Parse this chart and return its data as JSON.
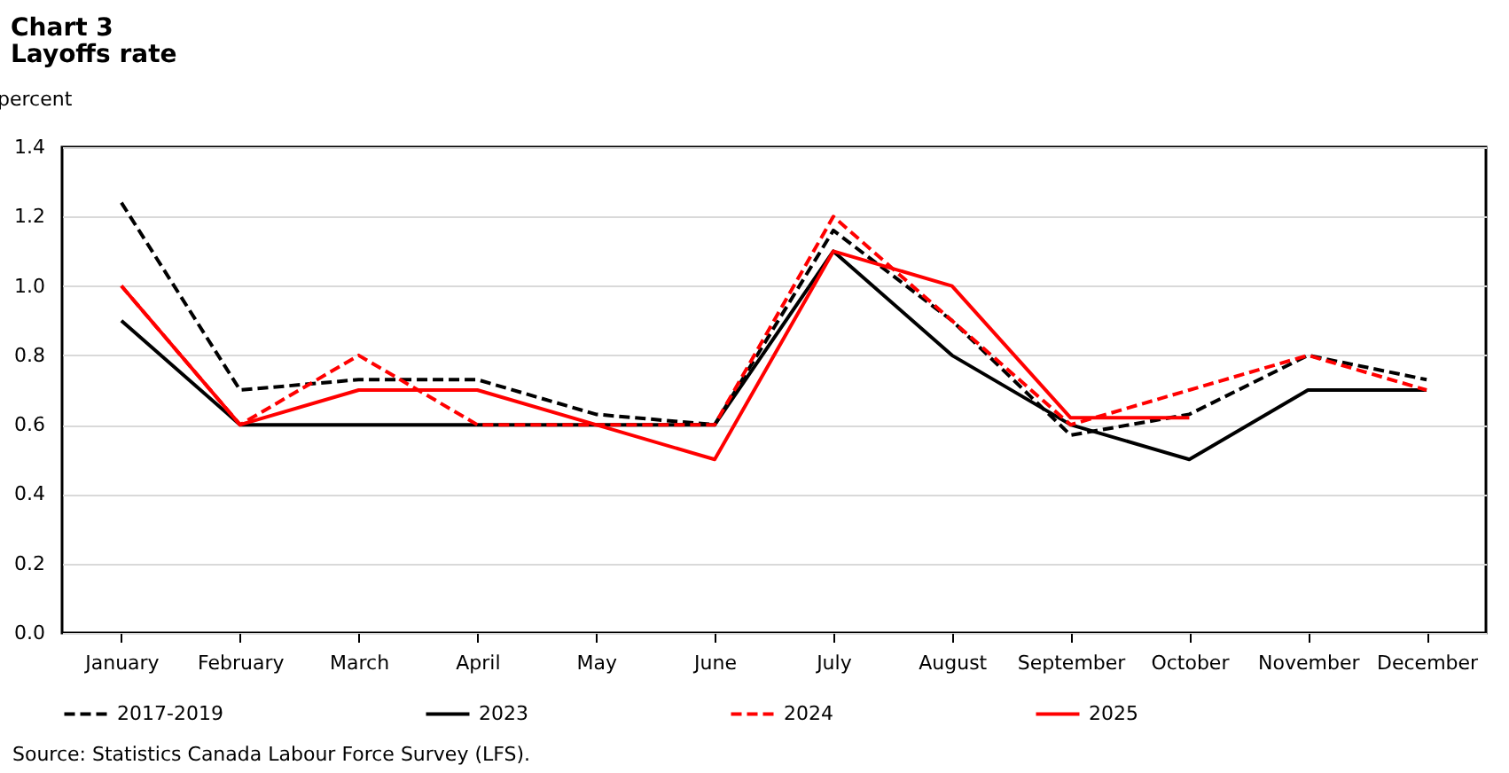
{
  "chart_data": {
    "type": "line",
    "title": "Chart 3",
    "subtitle": "Layoffs rate",
    "ylabel": "percent",
    "categories": [
      "January",
      "February",
      "March",
      "April",
      "May",
      "June",
      "July",
      "August",
      "September",
      "October",
      "November",
      "December"
    ],
    "series": [
      {
        "name": "2017-2019",
        "color": "#000000",
        "line_style": "dashed",
        "values": [
          1.24,
          0.7,
          0.73,
          0.73,
          0.63,
          0.6,
          1.16,
          0.9,
          0.57,
          0.63,
          0.8,
          0.73
        ]
      },
      {
        "name": "2023",
        "color": "#000000",
        "line_style": "solid",
        "values": [
          0.9,
          0.6,
          0.6,
          0.6,
          0.6,
          0.6,
          1.1,
          0.8,
          0.6,
          0.5,
          0.7,
          0.7
        ]
      },
      {
        "name": "2024",
        "color": "#ff0000",
        "line_style": "dashed",
        "values": [
          1.0,
          0.6,
          0.8,
          0.6,
          0.6,
          0.6,
          1.2,
          0.9,
          0.6,
          0.7,
          0.8,
          0.7
        ]
      },
      {
        "name": "2025",
        "color": "#ff0000",
        "line_style": "solid",
        "values": [
          1.0,
          0.6,
          0.7,
          0.7,
          0.6,
          0.5,
          1.1,
          1.0,
          0.62,
          0.62,
          null,
          null
        ]
      }
    ],
    "ylim": [
      0,
      1.4
    ],
    "yticks": [
      {
        "value": 0,
        "label": "0.0"
      },
      {
        "value": 0.2,
        "label": "0.2"
      },
      {
        "value": 0.4,
        "label": "0.4"
      },
      {
        "value": 0.6,
        "label": "0.6"
      },
      {
        "value": 0.8,
        "label": "0.8"
      },
      {
        "value": 1.0,
        "label": "1.0"
      },
      {
        "value": 1.2,
        "label": "1.2"
      },
      {
        "value": 1.4,
        "label": "1.4"
      }
    ],
    "grid": "y",
    "legend": "bottom",
    "annotations": [
      "Source: Statistics Canada Labour Force Survey (LFS)."
    ]
  }
}
